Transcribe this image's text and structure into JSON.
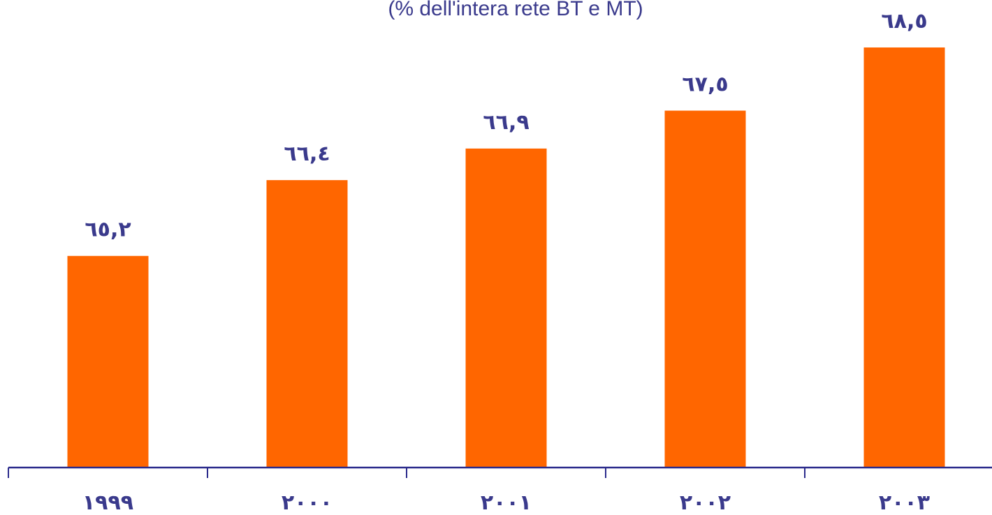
{
  "chart_data": {
    "type": "bar",
    "subtitle": "(% dell'intera rete BT e MT)",
    "categories": [
      "١٩٩٩",
      "٢٠٠٠",
      "٢٠٠١",
      "٢٠٠٢",
      "٢٠٠٣"
    ],
    "values": [
      65.2,
      66.4,
      66.9,
      67.5,
      68.5
    ],
    "value_labels": [
      "٦٥,٢",
      "٦٦,٤",
      "٦٦,٩",
      "٦٧,٥",
      "٦٨,٥"
    ],
    "ylim": [
      61.85,
      68.92
    ],
    "grid": false,
    "legend": "none"
  },
  "colors": {
    "bar": "#ff6600",
    "text": "#3a3a8c",
    "axis": "#2b2b8c"
  }
}
